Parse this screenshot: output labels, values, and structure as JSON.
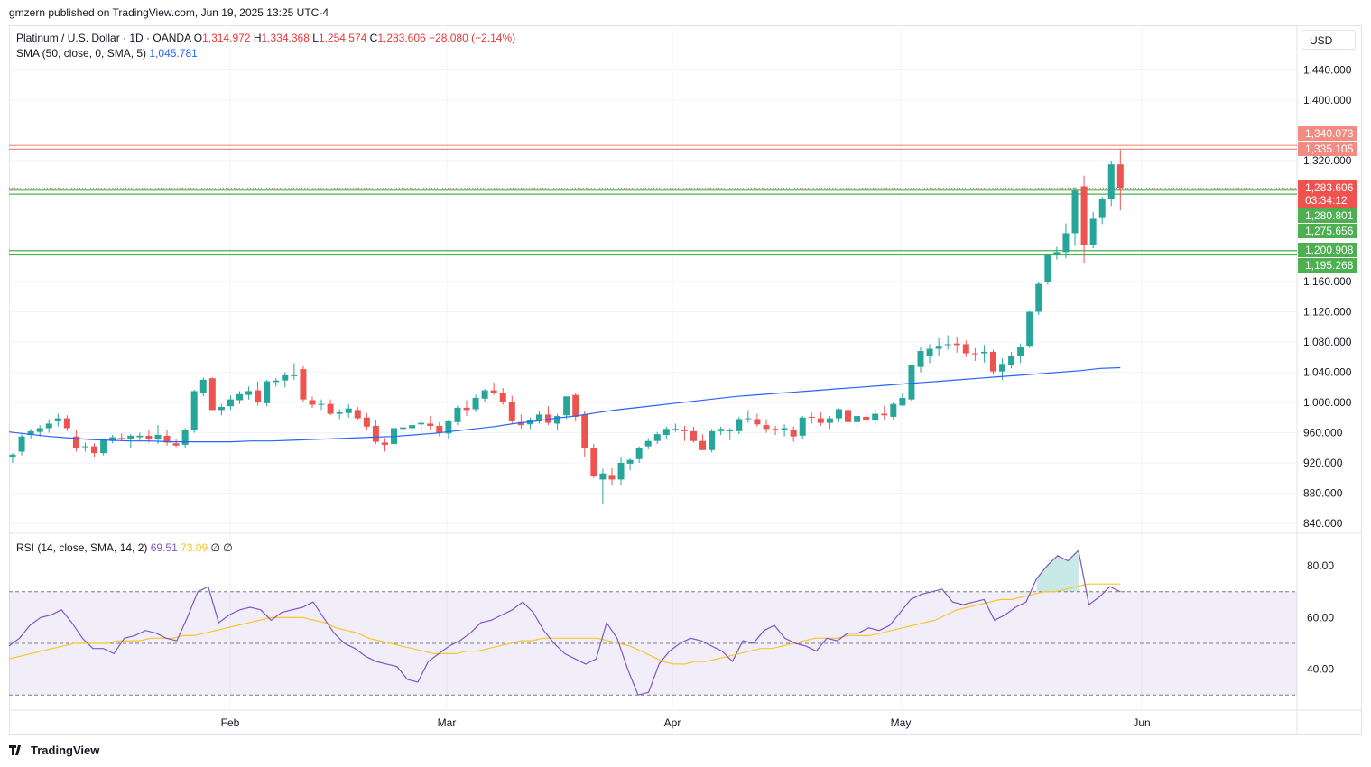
{
  "header": {
    "published": "gmzern published on TradingView.com, Jun 19, 2025 13:25 UTC-4"
  },
  "legend": {
    "symbol": "Platinum / U.S. Dollar · 1D · OANDA",
    "ohlc": [
      {
        "label": "O",
        "value": "1,314.972"
      },
      {
        "label": "H",
        "value": "1,334.368"
      },
      {
        "label": "L",
        "value": "1,254.574"
      },
      {
        "label": "C",
        "value": "1,283.606"
      }
    ],
    "change": "−28.080 (−2.14%)",
    "sma_label": "SMA (50, close, 0, SMA, 5)",
    "sma_value": "1,045.781",
    "rsi_label": "RSI (14, close, SMA, 14, 2)",
    "rsi_value": "69.51",
    "rsi_ma_value": "73.09",
    "rsi_extra1": "∅",
    "rsi_extra2": "∅"
  },
  "currency": "USD",
  "footer": {
    "brand": "TradingView"
  },
  "colors": {
    "up": "#26a69a",
    "down": "#ef5350",
    "sma": "#2962ff",
    "rsi": "#7e57c2",
    "rsi_ma": "#f7c52d",
    "res": "#f28b82",
    "sup": "#4caf50"
  },
  "chart_data": [
    {
      "type": "candlestick",
      "y_ticks": [
        "1,440.000",
        "1,400.000",
        "1,320.000",
        "1,160.000",
        "1,120.000",
        "1,080.000",
        "1,040.000",
        "1,000.000",
        "960.000",
        "920.000",
        "880.000",
        "840.000"
      ],
      "x_labels": [
        "Feb",
        "Mar",
        "Apr",
        "May",
        "Jun"
      ],
      "price_labels": [
        {
          "text": "1,340.073",
          "kind": "res"
        },
        {
          "text": "1,335.105",
          "kind": "res"
        },
        {
          "text": "1,283.606",
          "kind": "last"
        },
        {
          "text": "03:34:12",
          "kind": "last"
        },
        {
          "text": "1,280.801",
          "kind": "sup"
        },
        {
          "text": "1,275.656",
          "kind": "sup"
        },
        {
          "text": "1,200.908",
          "kind": "sup"
        },
        {
          "text": "1,195.268",
          "kind": "sup"
        }
      ],
      "horizontal_levels": [
        1340.073,
        1335.105,
        1283.606,
        1280.801,
        1275.656,
        1200.908,
        1195.268
      ],
      "candles": [
        [
          928,
          933,
          920,
          931
        ],
        [
          935,
          958,
          930,
          955
        ],
        [
          957,
          965,
          952,
          962
        ],
        [
          961,
          970,
          955,
          966
        ],
        [
          966,
          978,
          960,
          972
        ],
        [
          975,
          985,
          968,
          979
        ],
        [
          979,
          983,
          962,
          966
        ],
        [
          955,
          963,
          935,
          940
        ],
        [
          941,
          947,
          935,
          942
        ],
        [
          942,
          946,
          927,
          933
        ],
        [
          933,
          952,
          930,
          950
        ],
        [
          949,
          957,
          946,
          954
        ],
        [
          953,
          959,
          949,
          951
        ],
        [
          952,
          958,
          939,
          956
        ],
        [
          954,
          960,
          949,
          956
        ],
        [
          956,
          963,
          947,
          951
        ],
        [
          951,
          970,
          945,
          957
        ],
        [
          956,
          963,
          943,
          947
        ],
        [
          946,
          951,
          941,
          943
        ],
        [
          944,
          966,
          940,
          964
        ],
        [
          964,
          1017,
          960,
          1015
        ],
        [
          1013,
          1033,
          1008,
          1030
        ],
        [
          1032,
          1033,
          990,
          990
        ],
        [
          990,
          998,
          983,
          994
        ],
        [
          995,
          1009,
          990,
          1004
        ],
        [
          1003,
          1015,
          998,
          1011
        ],
        [
          1010,
          1021,
          1004,
          1015
        ],
        [
          1016,
          1028,
          996,
          1000
        ],
        [
          999,
          1030,
          995,
          1028
        ],
        [
          1027,
          1032,
          1021,
          1029
        ],
        [
          1029,
          1040,
          1020,
          1036
        ],
        [
          1035,
          1052,
          1030,
          1036
        ],
        [
          1044,
          1048,
          1000,
          1004
        ],
        [
          1003,
          1008,
          993,
          997
        ],
        [
          997,
          1004,
          990,
          998
        ],
        [
          998,
          1004,
          983,
          985
        ],
        [
          985,
          991,
          978,
          987
        ],
        [
          986,
          998,
          980,
          992
        ],
        [
          990,
          994,
          976,
          979
        ],
        [
          980,
          986,
          964,
          968
        ],
        [
          969,
          977,
          945,
          948
        ],
        [
          947,
          953,
          935,
          944
        ],
        [
          945,
          968,
          943,
          966
        ],
        [
          965,
          972,
          960,
          967
        ],
        [
          966,
          975,
          961,
          970
        ],
        [
          971,
          977,
          962,
          973
        ],
        [
          972,
          982,
          964,
          969
        ],
        [
          969,
          974,
          955,
          960
        ],
        [
          959,
          976,
          952,
          975
        ],
        [
          974,
          996,
          970,
          993
        ],
        [
          993,
          1003,
          982,
          990
        ],
        [
          991,
          1010,
          987,
          1006
        ],
        [
          1005,
          1018,
          1000,
          1016
        ],
        [
          1016,
          1026,
          1010,
          1013
        ],
        [
          1013,
          1019,
          997,
          1000
        ],
        [
          1000,
          1009,
          972,
          975
        ],
        [
          974,
          984,
          965,
          970
        ],
        [
          971,
          980,
          965,
          977
        ],
        [
          975,
          989,
          972,
          984
        ],
        [
          984,
          995,
          970,
          973
        ],
        [
          972,
          985,
          964,
          982
        ],
        [
          983,
          1006,
          978,
          1008
        ],
        [
          1010,
          1012,
          975,
          981
        ],
        [
          984,
          989,
          928,
          940
        ],
        [
          940,
          945,
          900,
          902
        ],
        [
          898,
          912,
          865,
          906
        ],
        [
          904,
          913,
          890,
          898
        ],
        [
          898,
          927,
          890,
          920
        ],
        [
          919,
          926,
          910,
          924
        ],
        [
          925,
          942,
          920,
          940
        ],
        [
          942,
          953,
          938,
          949
        ],
        [
          949,
          961,
          945,
          958
        ],
        [
          957,
          968,
          952,
          965
        ],
        [
          965,
          972,
          961,
          965
        ],
        [
          964,
          969,
          949,
          962
        ],
        [
          962,
          968,
          947,
          949
        ],
        [
          949,
          958,
          937,
          937
        ],
        [
          937,
          965,
          934,
          962
        ],
        [
          962,
          968,
          957,
          965
        ],
        [
          962,
          966,
          950,
          963
        ],
        [
          962,
          981,
          958,
          978
        ],
        [
          978,
          990,
          973,
          979
        ],
        [
          978,
          985,
          968,
          971
        ],
        [
          970,
          978,
          960,
          965
        ],
        [
          965,
          969,
          957,
          963
        ],
        [
          964,
          971,
          955,
          966
        ],
        [
          964,
          968,
          948,
          955
        ],
        [
          956,
          982,
          952,
          980
        ],
        [
          981,
          987,
          972,
          980
        ],
        [
          979,
          987,
          969,
          973
        ],
        [
          973,
          982,
          965,
          979
        ],
        [
          979,
          992,
          974,
          991
        ],
        [
          990,
          995,
          967,
          974
        ],
        [
          974,
          990,
          967,
          982
        ],
        [
          981,
          988,
          972,
          977
        ],
        [
          976,
          991,
          970,
          985
        ],
        [
          985,
          995,
          977,
          983
        ],
        [
          981,
          1000,
          977,
          998
        ],
        [
          996,
          1012,
          995,
          1006
        ],
        [
          1004,
          1049,
          1002,
          1049
        ],
        [
          1047,
          1073,
          1040,
          1068
        ],
        [
          1062,
          1077,
          1052,
          1071
        ],
        [
          1071,
          1085,
          1061,
          1075
        ],
        [
          1077,
          1089,
          1070,
          1077
        ],
        [
          1078,
          1086,
          1066,
          1076
        ],
        [
          1077,
          1082,
          1060,
          1065
        ],
        [
          1065,
          1072,
          1055,
          1064
        ],
        [
          1065,
          1076,
          1053,
          1067
        ],
        [
          1067,
          1070,
          1037,
          1041
        ],
        [
          1041,
          1058,
          1030,
          1051
        ],
        [
          1050,
          1067,
          1045,
          1062
        ],
        [
          1061,
          1078,
          1052,
          1074
        ],
        [
          1075,
          1121,
          1072,
          1120
        ],
        [
          1120,
          1160,
          1116,
          1157
        ],
        [
          1160,
          1197,
          1156,
          1195
        ],
        [
          1195,
          1206,
          1189,
          1199
        ],
        [
          1199,
          1237,
          1191,
          1224
        ],
        [
          1224,
          1285,
          1207,
          1280
        ],
        [
          1286,
          1300,
          1185,
          1208
        ],
        [
          1208,
          1252,
          1204,
          1243
        ],
        [
          1244,
          1272,
          1236,
          1269
        ],
        [
          1269,
          1320,
          1260,
          1315
        ],
        [
          1315,
          1334,
          1254,
          1284
        ]
      ],
      "sma": [
        961,
        958,
        955,
        953,
        951,
        950,
        949,
        949,
        948,
        948,
        948,
        948,
        949,
        949,
        950,
        951,
        952,
        953,
        954,
        955,
        957,
        959,
        962,
        965,
        968,
        972,
        975,
        979,
        982,
        986,
        990,
        993,
        996,
        999,
        1002,
        1005,
        1008,
        1010,
        1012,
        1014,
        1016,
        1018,
        1020,
        1022,
        1024,
        1026,
        1028,
        1030,
        1032,
        1034,
        1036,
        1038,
        1040,
        1042,
        1045,
        1046
      ],
      "rsi": [
        49,
        52,
        57,
        60,
        61,
        63,
        58,
        52,
        48,
        48,
        46,
        52,
        53,
        55,
        54,
        52,
        51,
        60,
        70,
        72,
        58,
        61,
        63,
        64,
        63,
        59,
        62,
        63,
        64,
        66,
        60,
        54,
        50,
        48,
        45,
        43,
        42,
        41,
        36,
        35,
        43,
        46,
        49,
        51,
        54,
        58,
        59,
        61,
        63,
        66,
        62,
        55,
        50,
        46,
        44,
        42,
        44,
        58,
        52,
        40,
        30,
        31,
        42,
        47,
        50,
        52,
        51,
        49,
        47,
        43,
        51,
        50,
        55,
        57,
        52,
        50,
        49,
        47,
        52,
        51,
        54,
        54,
        56,
        55,
        57,
        62,
        67,
        69,
        70,
        71,
        66,
        65,
        66,
        67,
        59,
        61,
        64,
        66,
        75,
        80,
        84,
        82,
        86,
        65,
        68,
        72,
        70
      ],
      "rsi_ma": [
        44,
        45,
        46,
        47,
        48,
        49,
        50,
        50,
        50,
        50,
        51,
        51,
        51,
        52,
        52,
        52,
        53,
        53,
        54,
        55,
        56,
        57,
        58,
        59,
        60,
        60,
        60,
        60,
        59,
        58,
        56,
        55,
        54,
        52,
        51,
        50,
        49,
        48,
        47,
        46,
        46,
        46,
        47,
        47,
        48,
        49,
        50,
        51,
        51,
        52,
        52,
        52,
        52,
        52,
        52,
        51,
        50,
        49,
        47,
        45,
        43,
        42,
        42,
        43,
        43,
        44,
        45,
        46,
        47,
        48,
        48,
        49,
        50,
        51,
        52,
        52,
        52,
        53,
        53,
        53,
        54,
        55,
        56,
        57,
        58,
        59,
        61,
        63,
        64,
        65,
        66,
        67,
        67,
        68,
        69,
        70,
        70,
        71,
        72,
        73,
        73,
        73,
        73
      ]
    }
  ]
}
